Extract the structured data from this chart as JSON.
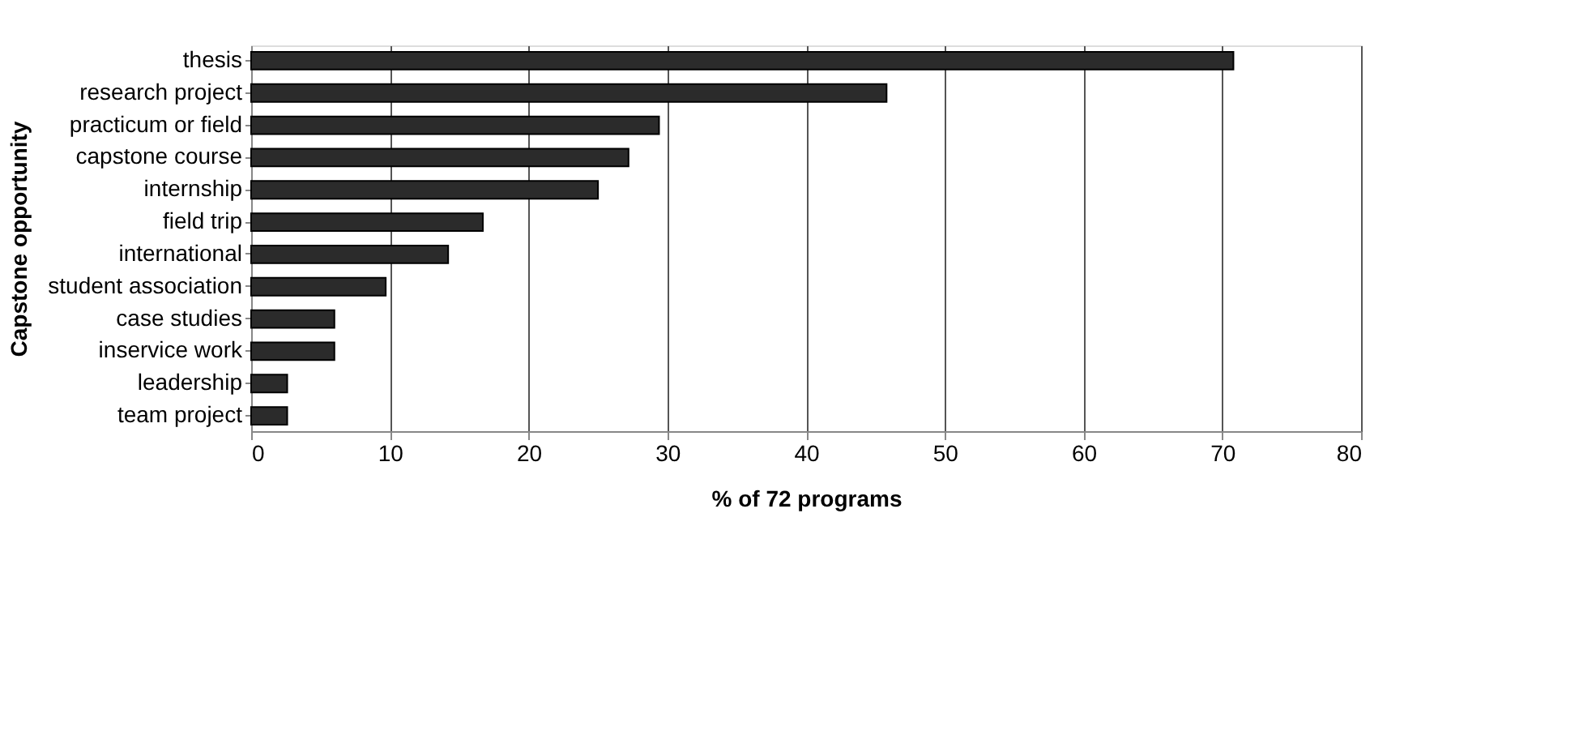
{
  "chart_data": {
    "type": "bar",
    "orientation": "horizontal",
    "xlabel": "% of 72 programs",
    "ylabel": "Capstone opportunity",
    "categories": [
      "thesis",
      "research project",
      "practicum or field",
      "capstone course",
      "internship",
      "field trip",
      "international",
      "student association",
      "case studies",
      "inservice work",
      "leadership",
      "team project"
    ],
    "values": [
      70.8,
      45.8,
      29.4,
      27.2,
      25,
      16.7,
      14.2,
      9.7,
      6,
      6,
      2.6,
      2.6
    ],
    "color": "#2b2b2b",
    "xlim": [
      0,
      80
    ],
    "xticks": [
      0,
      10,
      20,
      30,
      40,
      50,
      60,
      70,
      80
    ],
    "grid": "x"
  }
}
